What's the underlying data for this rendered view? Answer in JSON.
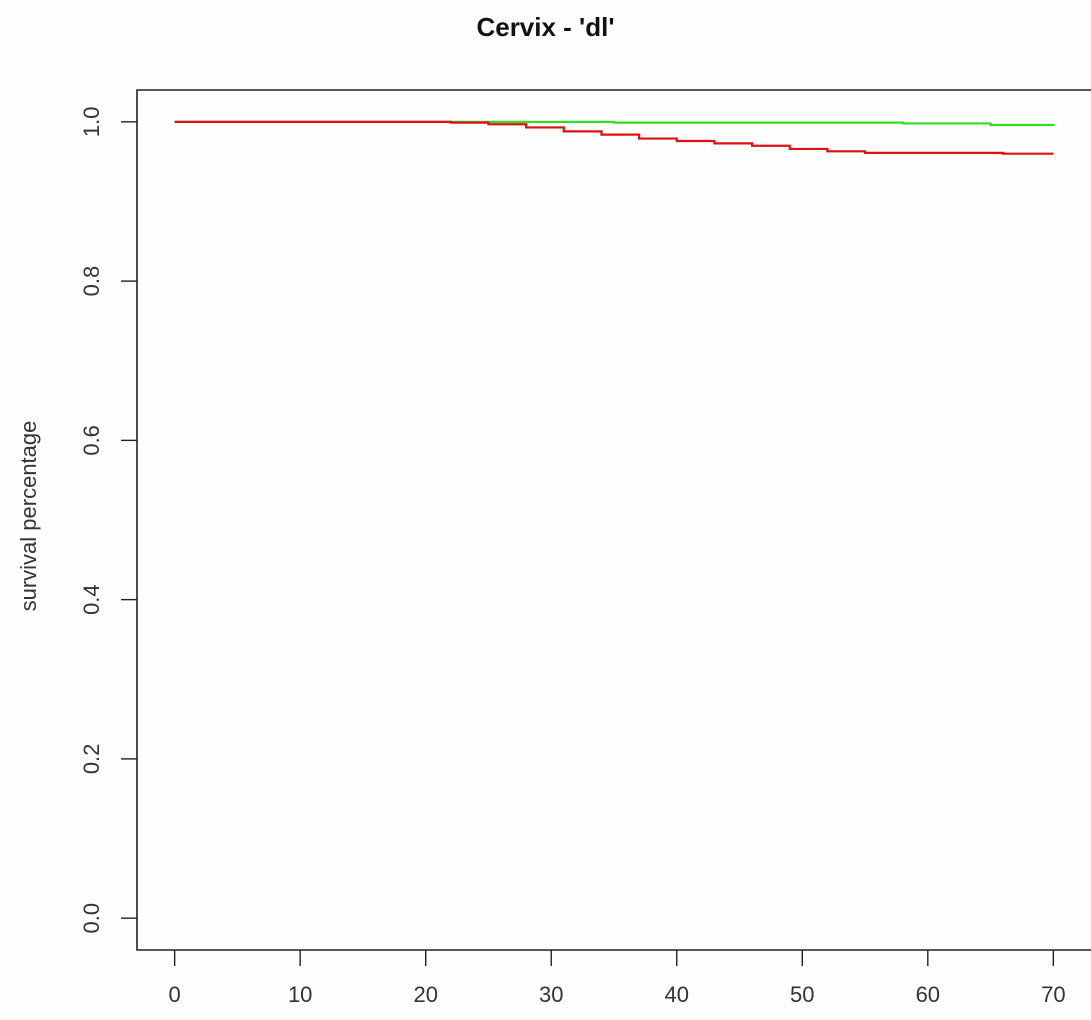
{
  "chart_data": {
    "type": "line",
    "title": "Cervix - 'dl'",
    "xlabel": "",
    "ylabel": "survival percentage",
    "xlim": [
      -3,
      73
    ],
    "ylim": [
      -0.04,
      1.04
    ],
    "x_ticks": [
      0,
      10,
      20,
      30,
      40,
      50,
      60,
      70
    ],
    "y_ticks": [
      0.0,
      0.2,
      0.4,
      0.6,
      0.8,
      1.0
    ],
    "y_tick_labels": [
      "0.0",
      "0.2",
      "0.4",
      "0.6",
      "0.8",
      "1.0"
    ],
    "grid": false,
    "series": [
      {
        "color": "#33dd22",
        "points": [
          [
            0,
            1.0
          ],
          [
            20,
            1.0
          ],
          [
            35,
            0.999
          ],
          [
            50,
            0.999
          ],
          [
            58,
            0.998
          ],
          [
            65,
            0.996
          ],
          [
            70,
            0.995
          ]
        ]
      },
      {
        "color": "#dd1111",
        "points": [
          [
            0,
            1.0
          ],
          [
            19,
            1.0
          ],
          [
            22,
            0.999
          ],
          [
            25,
            0.997
          ],
          [
            28,
            0.993
          ],
          [
            31,
            0.988
          ],
          [
            34,
            0.984
          ],
          [
            37,
            0.979
          ],
          [
            40,
            0.976
          ],
          [
            43,
            0.973
          ],
          [
            46,
            0.97
          ],
          [
            49,
            0.966
          ],
          [
            52,
            0.963
          ],
          [
            55,
            0.961
          ],
          [
            60,
            0.961
          ],
          [
            64,
            0.961
          ],
          [
            66,
            0.96
          ],
          [
            70,
            0.96
          ]
        ]
      }
    ]
  }
}
